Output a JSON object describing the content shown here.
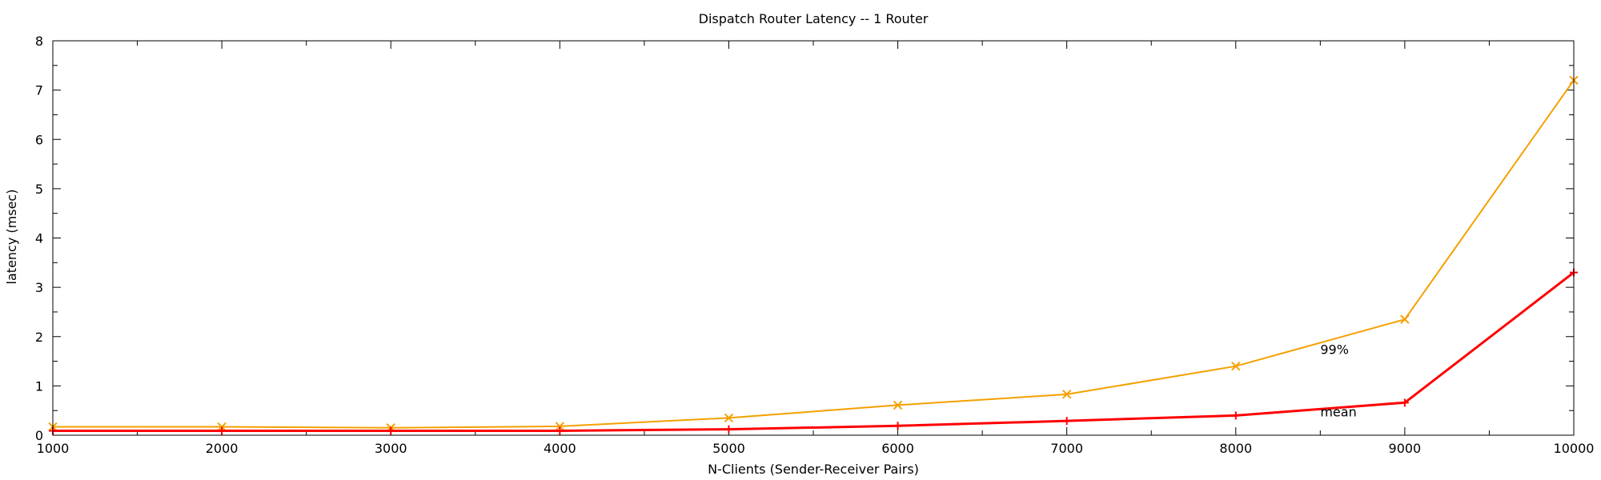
{
  "chart_data": {
    "type": "line",
    "title": "Dispatch Router Latency -- 1 Router",
    "xlabel": "N-Clients  (Sender-Receiver Pairs)",
    "ylabel": "latency (msec)",
    "xlim": [
      1000,
      10000
    ],
    "ylim": [
      0,
      8
    ],
    "x_ticks": [
      1000,
      2000,
      3000,
      4000,
      5000,
      6000,
      7000,
      8000,
      9000,
      10000
    ],
    "y_ticks": [
      0,
      1,
      2,
      3,
      4,
      5,
      6,
      7,
      8
    ],
    "grid": false,
    "legend": "none",
    "x": [
      1000,
      2000,
      3000,
      4000,
      5000,
      6000,
      7000,
      8000,
      9000,
      10000
    ],
    "series": [
      {
        "name": "99%",
        "color": "#f5a000",
        "marker": "x",
        "values": [
          0.17,
          0.17,
          0.15,
          0.18,
          0.35,
          0.61,
          0.83,
          1.4,
          2.35,
          7.2
        ]
      },
      {
        "name": "mean",
        "color": "#ff0000",
        "marker": "plus",
        "values": [
          0.09,
          0.09,
          0.09,
          0.09,
          0.12,
          0.19,
          0.29,
          0.4,
          0.66,
          3.3
        ]
      }
    ],
    "annotations": [
      {
        "text": "99%",
        "x": 8500,
        "y": 1.65
      },
      {
        "text": "mean",
        "x": 8500,
        "y": 0.38
      }
    ]
  }
}
